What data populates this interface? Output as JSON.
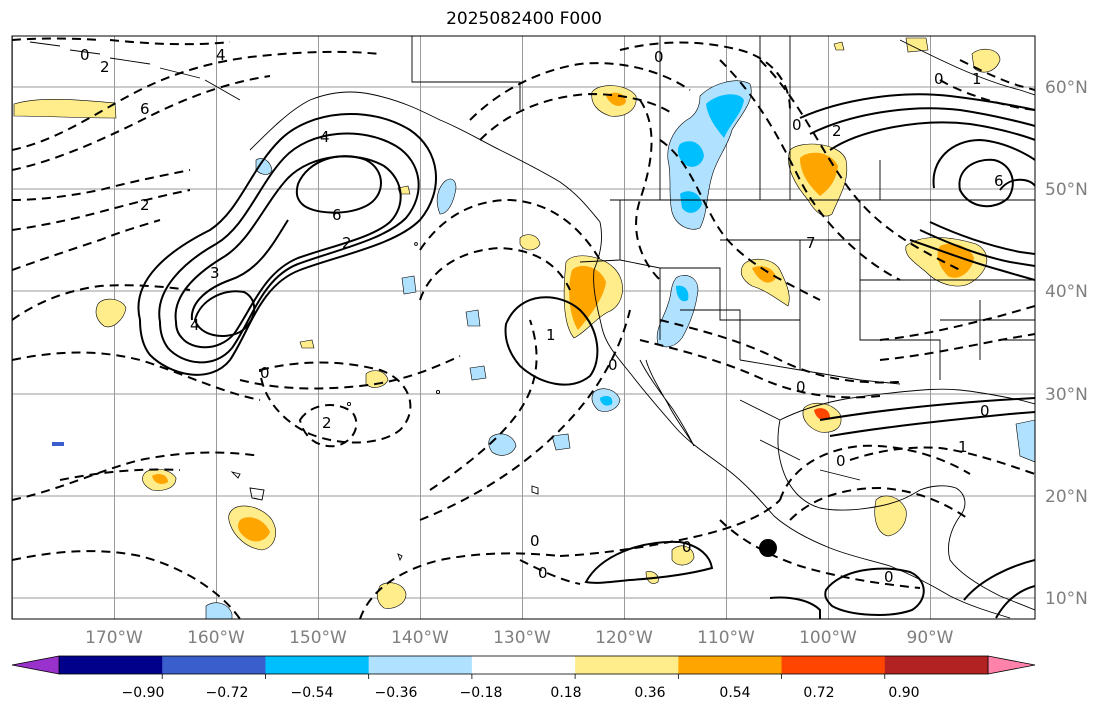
{
  "title": "2025082400 F000",
  "lat_labels": [
    "60°N",
    "50°N",
    "40°N",
    "30°N",
    "20°N",
    "10°N"
  ],
  "lon_labels": [
    "170°W",
    "160°W",
    "150°W",
    "140°W",
    "130°W",
    "120°W",
    "110°W",
    "100°W",
    "90°W"
  ],
  "colorbar": {
    "ticks": [
      "−0.90",
      "−0.72",
      "−0.54",
      "−0.36",
      "−0.18",
      "0.18",
      "0.36",
      "0.54",
      "0.72",
      "0.90"
    ],
    "colors": [
      "#9932cc",
      "#00008b",
      "#3a5fcd",
      "#00bfff",
      "#b0e2ff",
      "#ffffff",
      "#ffec8b",
      "#ffa500",
      "#ff4500",
      "#b22222",
      "#ff82ab"
    ]
  },
  "contour_labels": [
    "0",
    "2",
    "4",
    "6",
    "4",
    "6",
    "2",
    "3",
    "4",
    "0",
    "2",
    "0",
    "1",
    "0",
    "2",
    "0",
    "2",
    "6",
    "7",
    "0",
    "1",
    "0",
    "0",
    "1",
    "0",
    "0",
    "0",
    "0",
    "0"
  ],
  "marker": "storm-center-dot"
}
